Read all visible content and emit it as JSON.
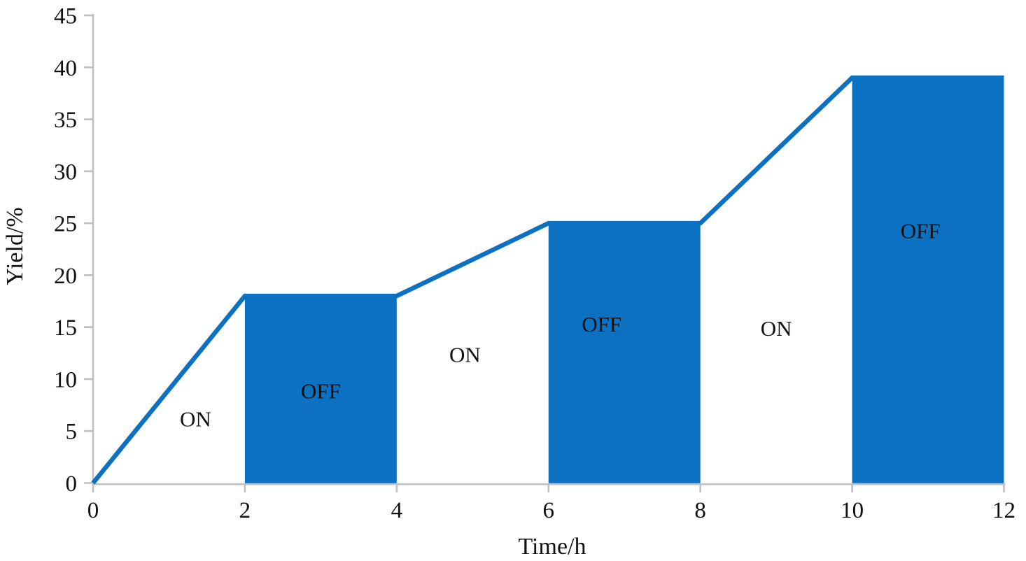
{
  "page": {
    "background": "#ffffff"
  },
  "chart_data": {
    "type": "line",
    "title": "",
    "xlabel": "Time/h",
    "ylabel": "Yield/%",
    "xlim": [
      0,
      12
    ],
    "ylim": [
      0,
      45
    ],
    "x_ticks": [
      "0",
      "2",
      "4",
      "6",
      "8",
      "10",
      "12"
    ],
    "x_tick_values": [
      0,
      2,
      4,
      6,
      8,
      10,
      12
    ],
    "y_ticks": [
      "0",
      "5",
      "10",
      "15",
      "20",
      "25",
      "30",
      "35",
      "40",
      "45"
    ],
    "y_tick_values": [
      0,
      5,
      10,
      15,
      20,
      25,
      30,
      35,
      40,
      45
    ],
    "grid": false,
    "legend": false,
    "series": [
      {
        "name": "yield-vs-time",
        "points": [
          [
            0,
            0
          ],
          [
            2,
            18
          ],
          [
            4,
            18
          ],
          [
            6,
            25
          ],
          [
            8,
            25
          ],
          [
            10,
            39
          ],
          [
            12,
            39
          ]
        ]
      }
    ],
    "off_period_blocks": [
      {
        "label": "OFF",
        "x_start": 2,
        "x_end": 4,
        "yield_level": 18
      },
      {
        "label": "OFF",
        "x_start": 6,
        "x_end": 8,
        "yield_level": 25
      },
      {
        "label": "OFF",
        "x_start": 10,
        "x_end": 12,
        "yield_level": 39
      }
    ],
    "annotations": [
      {
        "text": "ON",
        "x": 1.35,
        "y": 6.2
      },
      {
        "text": "OFF",
        "x": 3.0,
        "y": 8.9
      },
      {
        "text": "ON",
        "x": 4.9,
        "y": 12.4
      },
      {
        "text": "OFF",
        "x": 6.7,
        "y": 15.3
      },
      {
        "text": "ON",
        "x": 9.0,
        "y": 14.9
      },
      {
        "text": "OFF",
        "x": 10.9,
        "y": 24.3
      }
    ],
    "colors": {
      "fill_blue": "#0d71c1",
      "line_blue": "#0d71c1",
      "axis_gray": "#bfbfbf",
      "text": "#111111"
    }
  }
}
